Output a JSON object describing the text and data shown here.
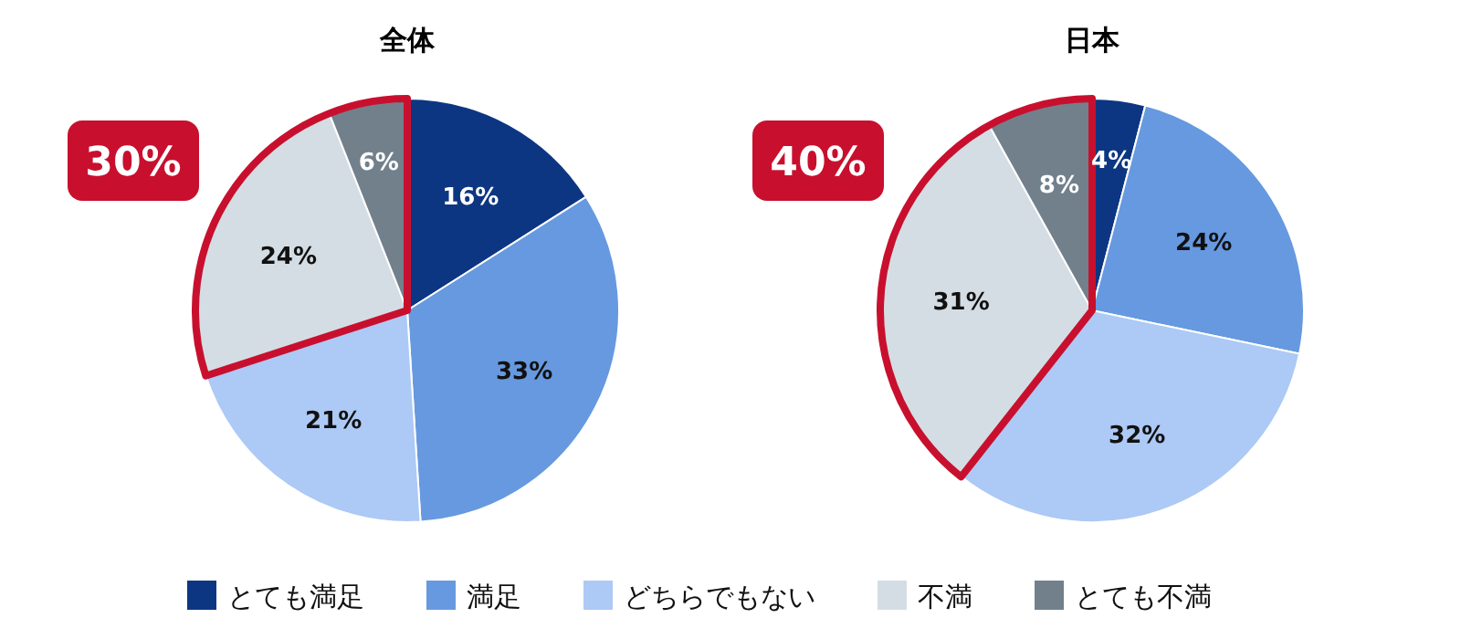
{
  "chart_data": [
    {
      "type": "pie",
      "title": "全体",
      "categories": [
        "とても満足",
        "満足",
        "どちらでもない",
        "不満",
        "とても不満"
      ],
      "values": [
        16,
        33,
        21,
        24,
        6
      ],
      "value_labels": [
        "16%",
        "33%",
        "21%",
        "24%",
        "6%"
      ],
      "colors": [
        "#0d3682",
        "#6699e0",
        "#adc9f5",
        "#d4dde4",
        "#72808c"
      ],
      "annotations": [
        "30%"
      ],
      "legend": "bottom"
    },
    {
      "type": "pie",
      "title": "日本",
      "categories": [
        null,
        null,
        null,
        null,
        null
      ],
      "values": [
        4,
        24,
        32,
        31,
        8
      ],
      "value_labels": [
        "4%",
        "24%",
        "32%",
        "31%",
        "8%"
      ],
      "colors": [
        "#0d3682",
        "#6699e0",
        "#adc9f5",
        "#d4dde4",
        "#72808c"
      ],
      "annotations": [
        "40%"
      ]
    }
  ]
}
